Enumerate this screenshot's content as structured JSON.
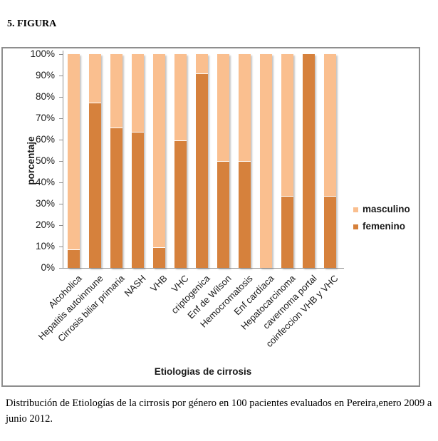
{
  "page": {
    "title": "5. FIGURA",
    "caption": "Distribución de Etiologías de la cirrosis por género en 100 pacientes evaluados en Pereira,enero 2009 a junio 2012."
  },
  "chart_data": {
    "type": "bar",
    "variant": "stacked-100-percent-column",
    "title": "",
    "xlabel": "Etiologias de cirrosis",
    "ylabel": "porcentaje",
    "ylim": [
      0,
      100
    ],
    "ytick_labels": [
      "0%",
      "10%",
      "20%",
      "30%",
      "40%",
      "50%",
      "60%",
      "70%",
      "80%",
      "90%",
      "100%"
    ],
    "grid": false,
    "legend_position": "right",
    "categories": [
      "Alcoholica",
      "Hepatitis autoinmune",
      "Cirrosis biliar primaria",
      "NASH",
      "VHB",
      "VHC",
      "criptogenica",
      "Enf de Wilson",
      "Hemocromatosis",
      "Enf cardíaca",
      "Hepatocarcinoma",
      "cavernoma portal",
      "coinfeccion VHB y VHC"
    ],
    "series": [
      {
        "name": "masculino",
        "color": "#FABF8F",
        "values": [
          91.3,
          22.5,
          34.2,
          36.2,
          90.3,
          40.4,
          9.1,
          50,
          50,
          100,
          66.3,
          0,
          66.3
        ]
      },
      {
        "name": "femenino",
        "color": "#D6813C",
        "values": [
          8.7,
          77.5,
          65.8,
          63.8,
          9.7,
          59.6,
          90.9,
          50,
          50,
          0,
          33.7,
          100,
          33.7
        ]
      }
    ],
    "colors": {
      "masculino": "#FABF8F",
      "femenino": "#D6813C",
      "axis": "#8e8e8e",
      "frame_border": "#8e8e8e",
      "text": "#1a1a1a"
    }
  }
}
